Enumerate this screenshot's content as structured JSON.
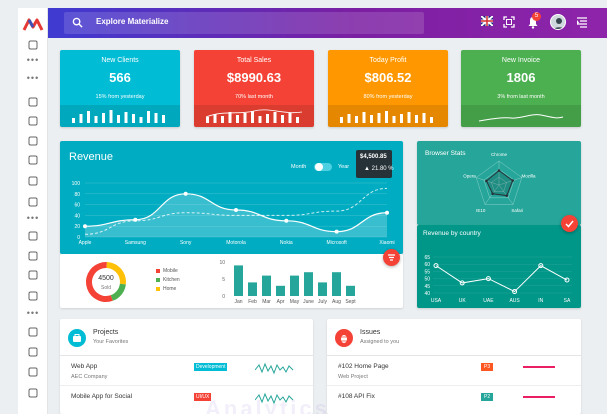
{
  "header": {
    "search_placeholder": "Explore Materialize",
    "notification_count": "5"
  },
  "stats": [
    {
      "title": "New Clients",
      "value": "566",
      "sub": "15% from yesterday",
      "color": "#00bcd4"
    },
    {
      "title": "Total Sales",
      "value": "$8990.63",
      "sub": "70% last month",
      "color": "#f44336"
    },
    {
      "title": "Today Profit",
      "value": "$806.52",
      "sub": "80% from yesterday",
      "color": "#ff9800"
    },
    {
      "title": "New Invoice",
      "value": "1806",
      "sub": "3% from last month",
      "color": "#4caf50"
    }
  ],
  "revenue": {
    "title": "Revenue",
    "toggle_left": "Month",
    "toggle_right": "Year",
    "badge_value": "$4,500.85",
    "badge_pct": "21.80 %",
    "chart_data": {
      "type": "area",
      "x": [
        "Apple",
        "Samsung",
        "Sony",
        "Motorola",
        "Nokia",
        "Microsoft",
        "Xiaomi"
      ],
      "yticks": [
        "100",
        "80",
        "60",
        "40",
        "20",
        "0"
      ],
      "ylim": [
        0,
        100
      ],
      "series": [
        {
          "values": [
            20,
            32,
            80,
            50,
            30,
            10,
            45
          ]
        },
        {
          "values": [
            5,
            30,
            45,
            40,
            40,
            48,
            90
          ]
        }
      ]
    }
  },
  "sold": {
    "value": "4500",
    "label": "Sold",
    "legend": [
      "Mobile",
      "Kitchen",
      "Home"
    ],
    "chart_data": {
      "type": "bar",
      "categories": [
        "Jan",
        "Feb",
        "Mar",
        "Apr",
        "May",
        "June",
        "July",
        "Aug",
        "Sept"
      ],
      "yticks": [
        "10",
        "5",
        "0"
      ],
      "ylim": [
        0,
        10
      ],
      "values": [
        9,
        4,
        6,
        3,
        6,
        7,
        4,
        7,
        3
      ]
    }
  },
  "browser": {
    "title": "Browser Stats",
    "chart_data": {
      "type": "radar",
      "axes": [
        "Chrome",
        "Mozilla",
        "Safari",
        "IE10",
        "Opera"
      ],
      "values": [
        0.6,
        0.6,
        0.55,
        0.45,
        0.55
      ]
    }
  },
  "country": {
    "title": "Revenue by country",
    "chart_data": {
      "type": "line",
      "categories": [
        "USA",
        "UK",
        "UAE",
        "AUS",
        "IN",
        "SA"
      ],
      "yticks": [
        "65",
        "60",
        "55",
        "50",
        "45",
        "40"
      ],
      "ylim": [
        40,
        65
      ],
      "values": [
        59,
        47,
        50,
        41,
        59,
        49
      ]
    }
  },
  "projects": {
    "title": "Projects",
    "subtitle": "Your Favorites",
    "items": [
      {
        "name": "Web App",
        "org": "AEC Company",
        "tag": "Development"
      },
      {
        "name": "Mobile App for Social",
        "org": "",
        "tag": "UI/UX"
      }
    ]
  },
  "issues": {
    "title": "Issues",
    "subtitle": "Assigned to you",
    "items": [
      {
        "name": "#102 Home Page",
        "org": "Web Project",
        "tag": "P3"
      },
      {
        "name": "#108 API Fix",
        "org": "",
        "tag": "P2"
      }
    ]
  },
  "watermark": "Analytics"
}
